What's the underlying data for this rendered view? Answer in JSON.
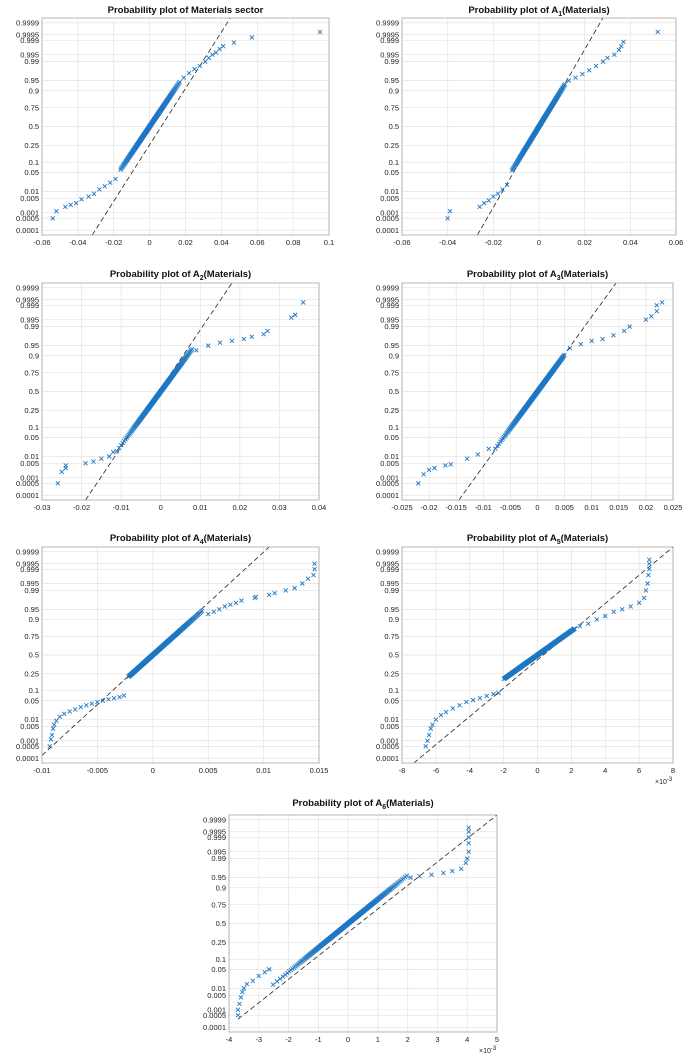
{
  "chart_data": [
    {
      "type": "scatter",
      "title": "Probability plot of Materials sector",
      "title_sub": "",
      "title_rest": "",
      "xlim": [
        -0.06,
        0.1
      ],
      "xticks": [
        "-0.06",
        "-0.04",
        "-0.02",
        "0",
        "0.02",
        "0.04",
        "0.06",
        "0.08",
        "0.1"
      ],
      "x_exponent": "",
      "yticks": [
        "0.9999",
        "0.9995",
        "0.999",
        "0.995",
        "0.99",
        "0.95",
        "0.9",
        "0.75",
        "0.5",
        "0.25",
        "0.1",
        "0.05",
        "0.01",
        "0.005",
        "0.001",
        "0.0005",
        "0.0001"
      ],
      "reference_line": [
        [
          -0.032,
          5e-05
        ],
        [
          0.045,
          0.99995
        ]
      ],
      "sample": {
        "mu": 0.0,
        "sigma": 0.0105,
        "lo": -0.0165,
        "hi": 0.017,
        "n": 170
      },
      "tail_points": [
        [
          -0.054,
          0.0005
        ],
        [
          -0.052,
          0.0012
        ],
        [
          -0.047,
          0.002
        ],
        [
          -0.044,
          0.0025
        ],
        [
          -0.041,
          0.003
        ],
        [
          -0.038,
          0.0045
        ],
        [
          -0.034,
          0.006
        ],
        [
          -0.031,
          0.008
        ],
        [
          -0.028,
          0.012
        ],
        [
          -0.025,
          0.016
        ],
        [
          -0.022,
          0.022
        ],
        [
          -0.019,
          0.03
        ],
        [
          0.019,
          0.96
        ],
        [
          0.022,
          0.972
        ],
        [
          0.025,
          0.98
        ],
        [
          0.028,
          0.985
        ],
        [
          0.031,
          0.99
        ],
        [
          0.033,
          0.993
        ],
        [
          0.035,
          0.995
        ],
        [
          0.037,
          0.996
        ],
        [
          0.039,
          0.9973
        ],
        [
          0.041,
          0.998
        ],
        [
          0.047,
          0.9987
        ],
        [
          0.057,
          0.9993
        ],
        [
          0.095,
          0.99965
        ]
      ]
    },
    {
      "type": "scatter",
      "title": "Probability plot of A",
      "title_sub": "1",
      "title_rest": "(Materials)",
      "xlim": [
        -0.06,
        0.06
      ],
      "xticks": [
        "-0.06",
        "-0.04",
        "-0.02",
        "0",
        "0.02",
        "0.04",
        "0.06"
      ],
      "x_exponent": "",
      "yticks": [
        "0.9999",
        "0.9995",
        "0.999",
        "0.995",
        "0.99",
        "0.95",
        "0.9",
        "0.75",
        "0.5",
        "0.25",
        "0.1",
        "0.05",
        "0.01",
        "0.005",
        "0.001",
        "0.0005",
        "0.0001"
      ],
      "reference_line": [
        [
          -0.027,
          5e-05
        ],
        [
          0.028,
          0.99995
        ]
      ],
      "sample": {
        "mu": 0.0,
        "sigma": 0.0075,
        "lo": -0.012,
        "hi": 0.0115,
        "n": 170
      },
      "tail_points": [
        [
          -0.04,
          0.0005
        ],
        [
          -0.039,
          0.0012
        ],
        [
          -0.026,
          0.002
        ],
        [
          -0.024,
          0.003
        ],
        [
          -0.022,
          0.004
        ],
        [
          -0.02,
          0.006
        ],
        [
          -0.018,
          0.008
        ],
        [
          -0.016,
          0.012
        ],
        [
          -0.014,
          0.018
        ],
        [
          0.013,
          0.95
        ],
        [
          0.016,
          0.96
        ],
        [
          0.019,
          0.97
        ],
        [
          0.022,
          0.978
        ],
        [
          0.025,
          0.985
        ],
        [
          0.028,
          0.99
        ],
        [
          0.03,
          0.993
        ],
        [
          0.033,
          0.995
        ],
        [
          0.035,
          0.997
        ],
        [
          0.036,
          0.998
        ],
        [
          0.037,
          0.9988
        ],
        [
          0.052,
          0.99965
        ]
      ]
    },
    {
      "type": "scatter",
      "title": "Probability plot of A",
      "title_sub": "2",
      "title_rest": "(Materials)",
      "xlim": [
        -0.03,
        0.04
      ],
      "xticks": [
        "-0.03",
        "-0.02",
        "-0.01",
        "0",
        "0.01",
        "0.02",
        "0.03",
        "0.04"
      ],
      "x_exponent": "",
      "yticks": [
        "0.9999",
        "0.9995",
        "0.999",
        "0.995",
        "0.99",
        "0.95",
        "0.9",
        "0.75",
        "0.5",
        "0.25",
        "0.1",
        "0.05",
        "0.01",
        "0.005",
        "0.001",
        "0.0005",
        "0.0001"
      ],
      "reference_line": [
        [
          -0.019,
          5e-05
        ],
        [
          0.018,
          0.99995
        ]
      ],
      "sample": {
        "mu": 0.0,
        "sigma": 0.0052,
        "lo": -0.0115,
        "hi": 0.008,
        "n": 170
      },
      "tail_points": [
        [
          -0.026,
          0.0005
        ],
        [
          -0.025,
          0.002
        ],
        [
          -0.024,
          0.003
        ],
        [
          -0.024,
          0.004
        ],
        [
          -0.019,
          0.005
        ],
        [
          -0.017,
          0.006
        ],
        [
          -0.015,
          0.008
        ],
        [
          -0.013,
          0.01
        ],
        [
          -0.012,
          0.015
        ],
        [
          0.009,
          0.93
        ],
        [
          0.012,
          0.95
        ],
        [
          0.015,
          0.96
        ],
        [
          0.018,
          0.965
        ],
        [
          0.021,
          0.97
        ],
        [
          0.023,
          0.975
        ],
        [
          0.026,
          0.98
        ],
        [
          0.027,
          0.985
        ],
        [
          0.033,
          0.996
        ],
        [
          0.034,
          0.997
        ],
        [
          0.036,
          0.9993
        ]
      ]
    },
    {
      "type": "scatter",
      "title": "Probability plot of A",
      "title_sub": "3",
      "title_rest": "(Materials)",
      "xlim": [
        -0.025,
        0.025
      ],
      "xticks": [
        "-0.025",
        "-0.02",
        "-0.015",
        "-0.01",
        "-0.005",
        "0",
        "0.005",
        "0.01",
        "0.015",
        "0.02",
        "0.025"
      ],
      "x_exponent": "",
      "yticks": [
        "0.9999",
        "0.9995",
        "0.999",
        "0.995",
        "0.99",
        "0.95",
        "0.9",
        "0.75",
        "0.5",
        "0.25",
        "0.1",
        "0.05",
        "0.01",
        "0.005",
        "0.001",
        "0.0005",
        "0.0001"
      ],
      "reference_line": [
        [
          -0.0145,
          5e-05
        ],
        [
          0.0145,
          0.99995
        ]
      ],
      "sample": {
        "mu": 0.0,
        "sigma": 0.0038,
        "lo": -0.008,
        "hi": 0.005,
        "n": 170
      },
      "tail_points": [
        [
          -0.022,
          0.0005
        ],
        [
          -0.021,
          0.0015
        ],
        [
          -0.02,
          0.0025
        ],
        [
          -0.019,
          0.003
        ],
        [
          -0.017,
          0.004
        ],
        [
          -0.016,
          0.0045
        ],
        [
          -0.013,
          0.008
        ],
        [
          -0.011,
          0.012
        ],
        [
          -0.009,
          0.02
        ],
        [
          0.006,
          0.94
        ],
        [
          0.008,
          0.955
        ],
        [
          0.01,
          0.965
        ],
        [
          0.012,
          0.97
        ],
        [
          0.014,
          0.978
        ],
        [
          0.016,
          0.985
        ],
        [
          0.017,
          0.99
        ],
        [
          0.02,
          0.995
        ],
        [
          0.021,
          0.9965
        ],
        [
          0.022,
          0.998
        ],
        [
          0.022,
          0.999
        ],
        [
          0.023,
          0.9993
        ]
      ]
    },
    {
      "type": "scatter",
      "title": "Probability plot of A",
      "title_sub": "4",
      "title_rest": "(Materials)",
      "xlim": [
        -0.01,
        0.015
      ],
      "xticks": [
        "-0.01",
        "-0.005",
        "0",
        "0.005",
        "0.01",
        "0.015"
      ],
      "x_exponent": "",
      "yticks": [
        "0.9999",
        "0.9995",
        "0.999",
        "0.995",
        "0.99",
        "0.95",
        "0.9",
        "0.75",
        "0.5",
        "0.25",
        "0.1",
        "0.05",
        "0.01",
        "0.005",
        "0.001",
        "0.0005",
        "0.0001"
      ],
      "reference_line": [
        [
          -0.01,
          0.00015
        ],
        [
          0.0105,
          0.99995
        ]
      ],
      "sample": {
        "mu": 0.0,
        "sigma": 0.0028,
        "lo": -0.0022,
        "hi": 0.0045,
        "n": 180
      },
      "tail_points": [
        [
          -0.0093,
          0.0005
        ],
        [
          -0.0092,
          0.0012
        ],
        [
          -0.0091,
          0.002
        ],
        [
          -0.009,
          0.004
        ],
        [
          -0.0089,
          0.006
        ],
        [
          -0.0087,
          0.009
        ],
        [
          -0.0084,
          0.013
        ],
        [
          -0.008,
          0.017
        ],
        [
          -0.0075,
          0.021
        ],
        [
          -0.007,
          0.025
        ],
        [
          -0.0065,
          0.03
        ],
        [
          -0.006,
          0.035
        ],
        [
          -0.0055,
          0.04
        ],
        [
          -0.005,
          0.045
        ],
        [
          -0.0045,
          0.05
        ],
        [
          -0.004,
          0.055
        ],
        [
          -0.0035,
          0.06
        ],
        [
          -0.003,
          0.065
        ],
        [
          -0.0026,
          0.072
        ],
        [
          0.005,
          0.93
        ],
        [
          0.0055,
          0.94
        ],
        [
          0.006,
          0.95
        ],
        [
          0.0065,
          0.96
        ],
        [
          0.007,
          0.965
        ],
        [
          0.0075,
          0.97
        ],
        [
          0.008,
          0.975
        ],
        [
          0.0092,
          0.98
        ],
        [
          0.0093,
          0.982
        ],
        [
          0.0105,
          0.985
        ],
        [
          0.011,
          0.987
        ],
        [
          0.012,
          0.99
        ],
        [
          0.0128,
          0.992
        ],
        [
          0.0135,
          0.995
        ],
        [
          0.014,
          0.997
        ],
        [
          0.0145,
          0.998
        ],
        [
          0.0146,
          0.999
        ],
        [
          0.0146,
          0.9995
        ]
      ]
    },
    {
      "type": "scatter",
      "title": "Probability plot of A",
      "title_sub": "5",
      "title_rest": "(Materials)",
      "xlim": [
        -8,
        8
      ],
      "xticks": [
        "-8",
        "-6",
        "-4",
        "-2",
        "0",
        "2",
        "4",
        "6",
        "8"
      ],
      "x_exponent": "-3",
      "yticks": [
        "0.9999",
        "0.9995",
        "0.999",
        "0.995",
        "0.99",
        "0.95",
        "0.9",
        "0.75",
        "0.5",
        "0.25",
        "0.1",
        "0.05",
        "0.01",
        "0.005",
        "0.001",
        "0.0005",
        "0.0001"
      ],
      "reference_line": [
        [
          -7.3,
          5e-05
        ],
        [
          8,
          0.99995
        ]
      ],
      "sample": {
        "mu": 0.0,
        "sigma": 2.3,
        "lo": -2.0,
        "hi": 2.2,
        "n": 180
      },
      "tail_points": [
        [
          -6.6,
          0.0005
        ],
        [
          -6.5,
          0.001
        ],
        [
          -6.4,
          0.002
        ],
        [
          -6.3,
          0.004
        ],
        [
          -6.2,
          0.006
        ],
        [
          -6.0,
          0.01
        ],
        [
          -5.7,
          0.015
        ],
        [
          -5.4,
          0.02
        ],
        [
          -5.0,
          0.027
        ],
        [
          -4.6,
          0.035
        ],
        [
          -4.2,
          0.045
        ],
        [
          -3.8,
          0.052
        ],
        [
          -3.4,
          0.06
        ],
        [
          -3.0,
          0.07
        ],
        [
          -2.6,
          0.08
        ],
        [
          -2.3,
          0.085
        ],
        [
          2.5,
          0.85
        ],
        [
          3.0,
          0.87
        ],
        [
          3.5,
          0.9
        ],
        [
          4.0,
          0.92
        ],
        [
          4.5,
          0.94
        ],
        [
          5.0,
          0.95
        ],
        [
          5.5,
          0.96
        ],
        [
          6.0,
          0.97
        ],
        [
          6.3,
          0.98
        ],
        [
          6.4,
          0.99
        ],
        [
          6.5,
          0.995
        ],
        [
          6.55,
          0.998
        ],
        [
          6.6,
          0.999
        ],
        [
          6.6,
          0.9995
        ],
        [
          6.6,
          0.9997
        ]
      ]
    },
    {
      "type": "scatter",
      "title": "Probability plot of A",
      "title_sub": "6",
      "title_rest": "(Materials)",
      "xlim": [
        -4,
        5
      ],
      "xticks": [
        "-4",
        "-3",
        "-2",
        "-1",
        "0",
        "1",
        "2",
        "3",
        "4",
        "5"
      ],
      "x_exponent": "-3",
      "yticks": [
        "0.9999",
        "0.9995",
        "0.999",
        "0.995",
        "0.99",
        "0.95",
        "0.9",
        "0.75",
        "0.5",
        "0.25",
        "0.1",
        "0.05",
        "0.01",
        "0.005",
        "0.001",
        "0.0005",
        "0.0001"
      ],
      "reference_line": [
        [
          -3.7,
          0.0003
        ],
        [
          5,
          0.99995
        ]
      ],
      "sample": {
        "mu": 0.0,
        "sigma": 1.15,
        "lo": -2.6,
        "hi": 2.0,
        "n": 200
      },
      "tail_points": [
        [
          -3.7,
          0.0005
        ],
        [
          -3.7,
          0.001
        ],
        [
          -3.65,
          0.002
        ],
        [
          -3.6,
          0.004
        ],
        [
          -3.55,
          0.007
        ],
        [
          -3.5,
          0.01
        ],
        [
          -3.4,
          0.015
        ],
        [
          -3.2,
          0.02
        ],
        [
          -3.0,
          0.03
        ],
        [
          -2.8,
          0.04
        ],
        [
          -2.65,
          0.05
        ],
        [
          2.1,
          0.95
        ],
        [
          2.4,
          0.955
        ],
        [
          2.8,
          0.96
        ],
        [
          3.2,
          0.965
        ],
        [
          3.5,
          0.97
        ],
        [
          3.8,
          0.975
        ],
        [
          3.95,
          0.985
        ],
        [
          4.0,
          0.99
        ],
        [
          4.05,
          0.995
        ],
        [
          4.05,
          0.998
        ],
        [
          4.05,
          0.999
        ],
        [
          4.05,
          0.9995
        ],
        [
          4.05,
          0.9997
        ]
      ]
    }
  ]
}
